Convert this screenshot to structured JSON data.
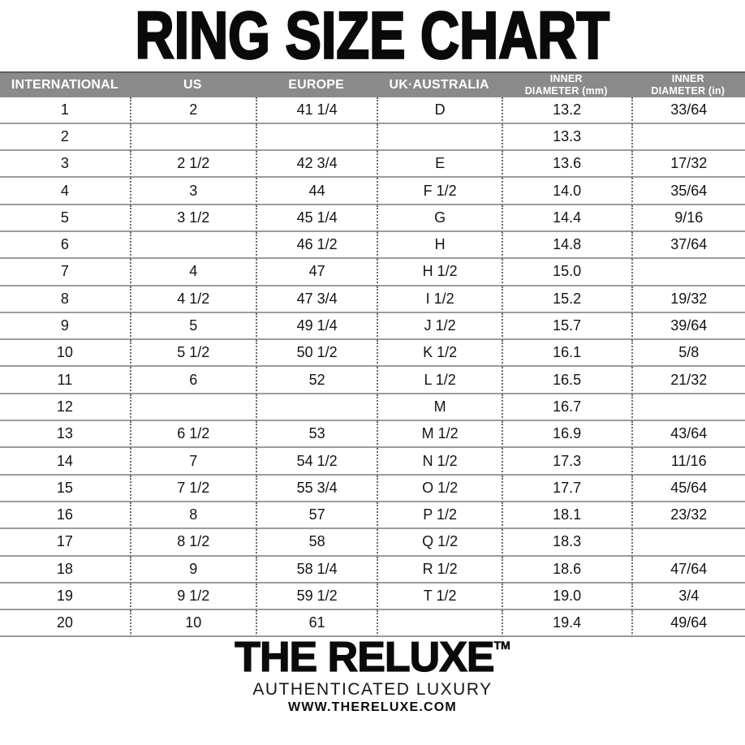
{
  "title": "RING SIZE CHART",
  "colors": {
    "header_bg": "#8a8a8a",
    "header_text": "#ffffff",
    "row_line": "#9c9c9c",
    "dotted_separator": "#6b6b6b",
    "text": "#141414"
  },
  "table": {
    "columns": [
      {
        "id": "international",
        "label": "INTERNATIONAL"
      },
      {
        "id": "us",
        "label": "US"
      },
      {
        "id": "europe",
        "label": "EUROPE"
      },
      {
        "id": "uk-australia",
        "label": "UK·AUSTRALIA"
      },
      {
        "id": "inner-diameter-mm",
        "label_line1": "INNER",
        "label_line2": "DIAMETER (mm)"
      },
      {
        "id": "inner-diameter-in",
        "label_line1": "INNER",
        "label_line2": "DIAMETER (in)"
      }
    ],
    "rows": [
      [
        "1",
        "2",
        "41 1/4",
        "D",
        "13.2",
        "33/64"
      ],
      [
        "2",
        "",
        "",
        "",
        "13.3",
        ""
      ],
      [
        "3",
        "2 1/2",
        "42 3/4",
        "E",
        "13.6",
        "17/32"
      ],
      [
        "4",
        "3",
        "44",
        "F 1/2",
        "14.0",
        "35/64"
      ],
      [
        "5",
        "3 1/2",
        "45 1/4",
        "G",
        "14.4",
        "9/16"
      ],
      [
        "6",
        "",
        "46 1/2",
        "H",
        "14.8",
        "37/64"
      ],
      [
        "7",
        "4",
        "47",
        "H 1/2",
        "15.0",
        ""
      ],
      [
        "8",
        "4 1/2",
        "47 3/4",
        "I 1/2",
        "15.2",
        "19/32"
      ],
      [
        "9",
        "5",
        "49 1/4",
        "J 1/2",
        "15.7",
        "39/64"
      ],
      [
        "10",
        "5 1/2",
        "50 1/2",
        "K 1/2",
        "16.1",
        "5/8"
      ],
      [
        "11",
        "6",
        "52",
        "L 1/2",
        "16.5",
        "21/32"
      ],
      [
        "12",
        "",
        "",
        "M",
        "16.7",
        ""
      ],
      [
        "13",
        "6 1/2",
        "53",
        "M 1/2",
        "16.9",
        "43/64"
      ],
      [
        "14",
        "7",
        "54 1/2",
        "N 1/2",
        "17.3",
        "11/16"
      ],
      [
        "15",
        "7 1/2",
        "55 3/4",
        "O 1/2",
        "17.7",
        "45/64"
      ],
      [
        "16",
        "8",
        "57",
        "P 1/2",
        "18.1",
        "23/32"
      ],
      [
        "17",
        "8 1/2",
        "58",
        "Q 1/2",
        "18.3",
        ""
      ],
      [
        "18",
        "9",
        "58 1/4",
        "R 1/2",
        "18.6",
        "47/64"
      ],
      [
        "19",
        "9 1/2",
        "59 1/2",
        "T 1/2",
        "19.0",
        "3/4"
      ],
      [
        "20",
        "10",
        "61",
        "",
        "19.4",
        "49/64"
      ]
    ]
  },
  "footer": {
    "brand": "THE RELUXE",
    "trademark": "TM",
    "tagline": "AUTHENTICATED LUXURY",
    "website": "WWW.THERELUXE.COM"
  }
}
